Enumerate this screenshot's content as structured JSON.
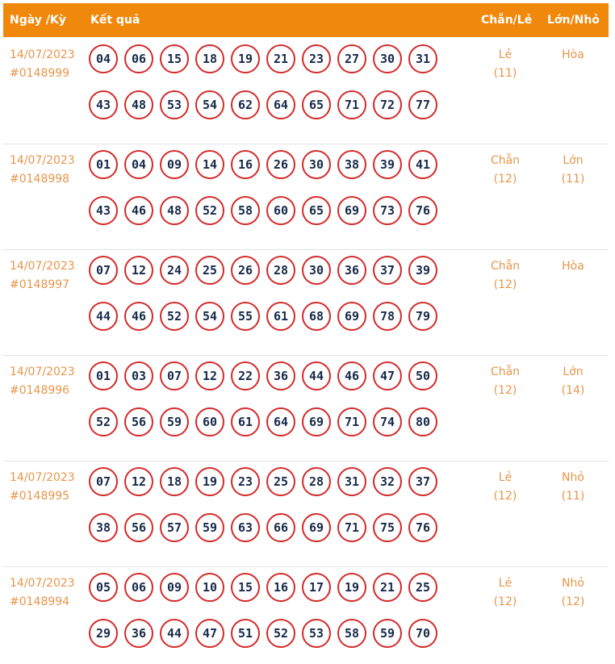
{
  "header": {
    "date": "Ngày /Kỳ",
    "result": "Kết quả",
    "even_odd": "Chẵn/Lẻ",
    "big_small": "Lớn/Nhỏ"
  },
  "rows": [
    {
      "date": "14/07/2023",
      "id": "#0148999",
      "numbers": [
        "04",
        "06",
        "15",
        "18",
        "19",
        "21",
        "23",
        "27",
        "30",
        "31",
        "43",
        "48",
        "53",
        "54",
        "62",
        "64",
        "65",
        "71",
        "72",
        "77"
      ],
      "even_odd": "Lẻ",
      "even_odd_count": "(11)",
      "big_small": "Hòa",
      "big_small_count": ""
    },
    {
      "date": "14/07/2023",
      "id": "#0148998",
      "numbers": [
        "01",
        "04",
        "09",
        "14",
        "16",
        "26",
        "30",
        "38",
        "39",
        "41",
        "43",
        "46",
        "48",
        "52",
        "58",
        "60",
        "65",
        "69",
        "73",
        "76"
      ],
      "even_odd": "Chẵn",
      "even_odd_count": "(12)",
      "big_small": "Lớn",
      "big_small_count": "(11)"
    },
    {
      "date": "14/07/2023",
      "id": "#0148997",
      "numbers": [
        "07",
        "12",
        "24",
        "25",
        "26",
        "28",
        "30",
        "36",
        "37",
        "39",
        "44",
        "46",
        "52",
        "54",
        "55",
        "61",
        "68",
        "69",
        "78",
        "79"
      ],
      "even_odd": "Chẵn",
      "even_odd_count": "(12)",
      "big_small": "Hòa",
      "big_small_count": ""
    },
    {
      "date": "14/07/2023",
      "id": "#0148996",
      "numbers": [
        "01",
        "03",
        "07",
        "12",
        "22",
        "36",
        "44",
        "46",
        "47",
        "50",
        "52",
        "56",
        "59",
        "60",
        "61",
        "64",
        "69",
        "71",
        "74",
        "80"
      ],
      "even_odd": "Chẵn",
      "even_odd_count": "(12)",
      "big_small": "Lớn",
      "big_small_count": "(14)"
    },
    {
      "date": "14/07/2023",
      "id": "#0148995",
      "numbers": [
        "07",
        "12",
        "18",
        "19",
        "23",
        "25",
        "28",
        "31",
        "32",
        "37",
        "38",
        "56",
        "57",
        "59",
        "63",
        "66",
        "69",
        "71",
        "75",
        "76"
      ],
      "even_odd": "Lẻ",
      "even_odd_count": "(12)",
      "big_small": "Nhỏ",
      "big_small_count": "(11)"
    },
    {
      "date": "14/07/2023",
      "id": "#0148994",
      "numbers": [
        "05",
        "06",
        "09",
        "10",
        "15",
        "16",
        "17",
        "19",
        "21",
        "25",
        "29",
        "36",
        "44",
        "47",
        "51",
        "52",
        "53",
        "58",
        "59",
        "70"
      ],
      "even_odd": "Lẻ",
      "even_odd_count": "(12)",
      "big_small": "Nhỏ",
      "big_small_count": "(12)"
    }
  ]
}
